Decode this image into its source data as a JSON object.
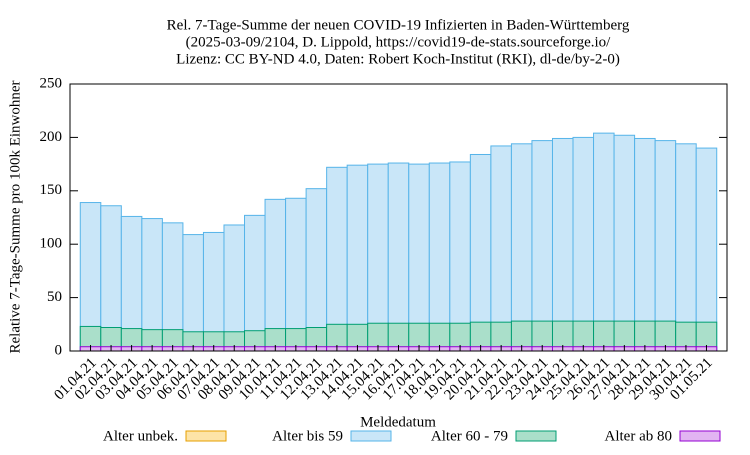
{
  "chart_data": {
    "type": "bar",
    "title": [
      "Rel. 7-Tage-Summe der neuen COVID-19 Infizierten in Baden-Württemberg",
      "(2025-03-09/2104, D. Lippold, https://covid19-de-stats.sourceforge.io/",
      "Lizenz: CC BY-ND 4.0, Daten: Robert Koch-Institut (RKI), dl-de/by-2-0)"
    ],
    "x_label": "Meldedatum",
    "y_label": "Relative 7-Tage-Summe pro 100k Einwohner",
    "categories": [
      "01.04.21",
      "02.04.21",
      "03.04.21",
      "04.04.21",
      "05.04.21",
      "06.04.21",
      "07.04.21",
      "08.04.21",
      "09.04.21",
      "10.04.21",
      "11.04.21",
      "12.04.21",
      "13.04.21",
      "14.04.21",
      "15.04.21",
      "16.04.21",
      "17.04.21",
      "18.04.21",
      "19.04.21",
      "20.04.21",
      "21.04.21",
      "22.04.21",
      "23.04.21",
      "24.04.21",
      "25.04.21",
      "26.04.21",
      "27.04.21",
      "28.04.21",
      "29.04.21",
      "30.04.21",
      "01.05.21"
    ],
    "series": [
      {
        "name": "Alter unbek.",
        "color": "#e69f00",
        "fill": "#fde4a8",
        "values": [
          0,
          0,
          0,
          0,
          0,
          0,
          0,
          0,
          0,
          0,
          0,
          0,
          0,
          0,
          0,
          0,
          0,
          0,
          0,
          0,
          0,
          0,
          0,
          0,
          0,
          0,
          0,
          0,
          0,
          0,
          0
        ]
      },
      {
        "name": "Alter bis 59",
        "color": "#56b4e9",
        "fill": "#c9e6f8",
        "values": [
          139,
          136,
          126,
          124,
          120,
          109,
          111,
          118,
          127,
          142,
          143,
          152,
          172,
          174,
          175,
          176,
          175,
          176,
          177,
          184,
          192,
          194,
          197,
          199,
          200,
          204,
          202,
          199,
          197,
          194,
          190
        ]
      },
      {
        "name": "Alter 60 - 79",
        "color": "#009e73",
        "fill": "#aadfca",
        "values": [
          23,
          22,
          21,
          20,
          20,
          18,
          18,
          18,
          19,
          21,
          21,
          22,
          25,
          25,
          26,
          26,
          26,
          26,
          26,
          27,
          27,
          28,
          28,
          28,
          28,
          28,
          28,
          28,
          28,
          27,
          27
        ]
      },
      {
        "name": "Alter ab 80",
        "color": "#9400d3",
        "fill": "#e2b4f2",
        "values": [
          4,
          4,
          4,
          4,
          4,
          4,
          4,
          4,
          4,
          4,
          4,
          4,
          4,
          4,
          4,
          4,
          4,
          4,
          4,
          4,
          4,
          4,
          4,
          4,
          4,
          4,
          4,
          4,
          4,
          4,
          4
        ]
      }
    ],
    "draw_order": [
      1,
      2,
      3,
      0
    ],
    "ylim": [
      0,
      250
    ],
    "yticks": [
      0,
      50,
      100,
      150,
      200,
      250
    ]
  }
}
